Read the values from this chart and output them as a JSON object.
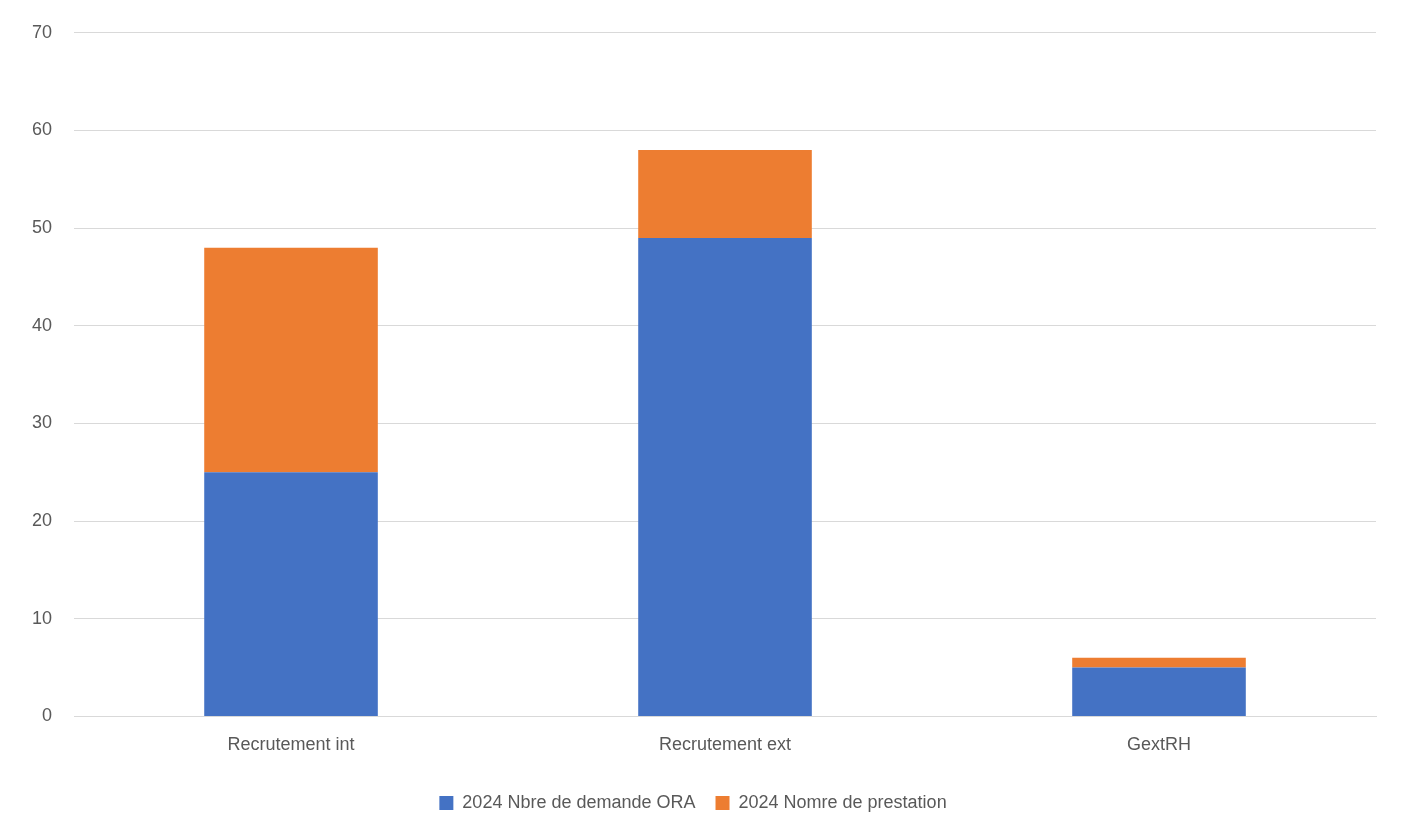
{
  "chart_data": {
    "type": "bar",
    "stacked": true,
    "categories": [
      "Recrutement int",
      "Recrutement ext",
      "GextRH"
    ],
    "series": [
      {
        "name": "2024 Nbre de demande ORA",
        "color": "#4472c4",
        "values": [
          25,
          49,
          5
        ]
      },
      {
        "name": "2024 Nomre de prestation",
        "color": "#ed7d31",
        "values": [
          23,
          9,
          1
        ]
      }
    ],
    "ylim": [
      0,
      70
    ],
    "yticks": [
      0,
      10,
      20,
      30,
      40,
      50,
      60,
      70
    ],
    "grid": "y",
    "legend": "bottom"
  }
}
